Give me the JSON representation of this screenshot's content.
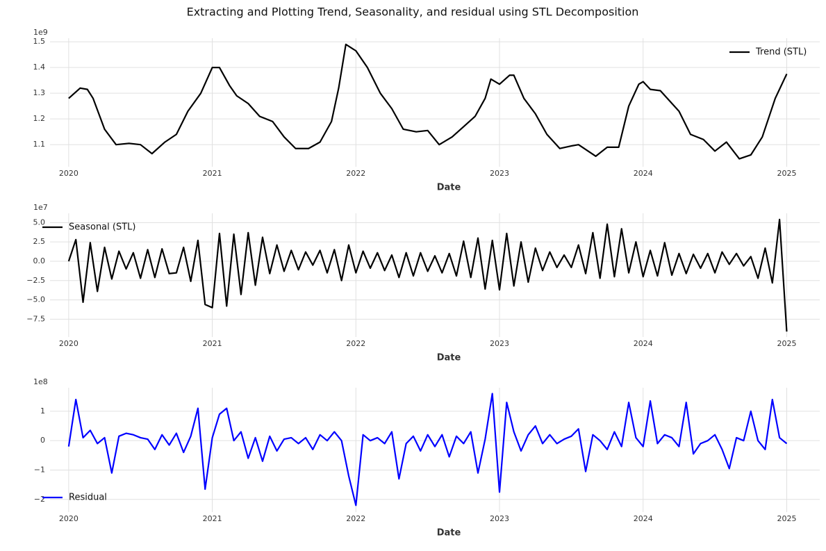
{
  "title": "Extracting and Plotting Trend, Seasonality, and residual using STL Decomposition",
  "chart_data": [
    {
      "type": "line",
      "xlabel": "Date",
      "y_offset_label": "1e9",
      "legend": "upper right",
      "grid": true,
      "xlim": [
        2019.87,
        2025.23
      ],
      "xticks": [
        2020,
        2021,
        2022,
        2023,
        2024,
        2025
      ],
      "ylim": [
        1.014,
        1.514
      ],
      "yticks": [
        1.1,
        1.2,
        1.3,
        1.4,
        1.5
      ],
      "x": [
        2020.0,
        2020.08,
        2020.13,
        2020.17,
        2020.25,
        2020.33,
        2020.42,
        2020.5,
        2020.58,
        2020.67,
        2020.75,
        2020.83,
        2020.92,
        2021.0,
        2021.05,
        2021.12,
        2021.17,
        2021.25,
        2021.33,
        2021.42,
        2021.5,
        2021.58,
        2021.67,
        2021.75,
        2021.83,
        2021.88,
        2021.93,
        2022.0,
        2022.08,
        2022.17,
        2022.25,
        2022.33,
        2022.42,
        2022.5,
        2022.58,
        2022.67,
        2022.75,
        2022.83,
        2022.9,
        2022.94,
        2023.0,
        2023.07,
        2023.1,
        2023.17,
        2023.25,
        2023.33,
        2023.42,
        2023.5,
        2023.55,
        2023.67,
        2023.75,
        2023.83,
        2023.9,
        2023.97,
        2024.0,
        2024.05,
        2024.12,
        2024.25,
        2024.33,
        2024.42,
        2024.5,
        2024.58,
        2024.67,
        2024.75,
        2024.83,
        2024.92,
        2025.0
      ],
      "series": [
        {
          "name": "Trend (STL)",
          "color": "#000000",
          "values": [
            1.28,
            1.32,
            1.315,
            1.28,
            1.16,
            1.1,
            1.105,
            1.1,
            1.065,
            1.11,
            1.14,
            1.23,
            1.3,
            1.4,
            1.4,
            1.33,
            1.29,
            1.26,
            1.21,
            1.19,
            1.13,
            1.085,
            1.085,
            1.11,
            1.19,
            1.32,
            1.49,
            1.465,
            1.4,
            1.3,
            1.24,
            1.16,
            1.15,
            1.155,
            1.1,
            1.13,
            1.17,
            1.21,
            1.28,
            1.355,
            1.335,
            1.37,
            1.37,
            1.28,
            1.22,
            1.14,
            1.085,
            1.095,
            1.1,
            1.055,
            1.09,
            1.09,
            1.25,
            1.335,
            1.345,
            1.315,
            1.31,
            1.23,
            1.14,
            1.12,
            1.075,
            1.11,
            1.045,
            1.06,
            1.13,
            1.28,
            1.375
          ]
        }
      ]
    },
    {
      "type": "line",
      "xlabel": "Date",
      "y_offset_label": "1e7",
      "legend": "upper left",
      "grid": true,
      "xlim": [
        2019.87,
        2025.23
      ],
      "xticks": [
        2020,
        2021,
        2022,
        2023,
        2024,
        2025
      ],
      "ylim": [
        -9.8,
        6.2
      ],
      "yticks": [
        {
          "value": 5,
          "label": "5.0"
        },
        {
          "value": 2.5,
          "label": "2.5"
        },
        {
          "value": 0,
          "label": "0.0"
        },
        {
          "value": -2.5,
          "label": "−2.5"
        },
        {
          "value": -5,
          "label": "−5.0"
        },
        {
          "value": -7.5,
          "label": "−7.5"
        }
      ],
      "x": [
        2020,
        2020.05,
        2020.1,
        2020.15,
        2020.2,
        2020.25,
        2020.3,
        2020.35,
        2020.4,
        2020.45,
        2020.5,
        2020.55,
        2020.6,
        2020.65,
        2020.7,
        2020.75,
        2020.8,
        2020.85,
        2020.9,
        2020.95,
        2021,
        2021.05,
        2021.1,
        2021.15,
        2021.2,
        2021.25,
        2021.3,
        2021.35,
        2021.4,
        2021.45,
        2021.5,
        2021.55,
        2021.6,
        2021.65,
        2021.7,
        2021.75,
        2021.8,
        2021.85,
        2021.9,
        2021.95,
        2022,
        2022.05,
        2022.1,
        2022.15,
        2022.2,
        2022.25,
        2022.3,
        2022.35,
        2022.4,
        2022.45,
        2022.5,
        2022.55,
        2022.6,
        2022.65,
        2022.7,
        2022.75,
        2022.8,
        2022.85,
        2022.9,
        2022.95,
        2023,
        2023.05,
        2023.1,
        2023.15,
        2023.2,
        2023.25,
        2023.3,
        2023.35,
        2023.4,
        2023.45,
        2023.5,
        2023.55,
        2023.6,
        2023.65,
        2023.7,
        2023.75,
        2023.8,
        2023.85,
        2023.9,
        2023.95,
        2024,
        2024.05,
        2024.1,
        2024.15,
        2024.2,
        2024.25,
        2024.3,
        2024.35,
        2024.4,
        2024.45,
        2024.5,
        2024.55,
        2024.6,
        2024.65,
        2024.7,
        2024.75,
        2024.8,
        2024.85,
        2024.9,
        2024.95,
        2025
      ],
      "series": [
        {
          "name": "Seasonal (STL)",
          "color": "#000000",
          "values": [
            0,
            2.8,
            -5.3,
            2.4,
            -3.9,
            1.8,
            -2.3,
            1.3,
            -1.0,
            1.1,
            -2.2,
            1.5,
            -2.1,
            1.6,
            -1.6,
            -1.5,
            1.8,
            -2.6,
            2.7,
            -5.6,
            -6.0,
            3.6,
            -5.8,
            3.5,
            -4.3,
            3.7,
            -3.1,
            3.1,
            -1.6,
            2.1,
            -1.3,
            1.4,
            -1.1,
            1.2,
            -0.5,
            1.4,
            -1.5,
            1.5,
            -2.5,
            2.1,
            -1.5,
            1.3,
            -0.9,
            1.1,
            -1.2,
            0.8,
            -2.1,
            1.1,
            -1.9,
            1.1,
            -1.3,
            0.7,
            -1.5,
            1.0,
            -1.9,
            2.6,
            -2.1,
            3.0,
            -3.6,
            2.7,
            -3.7,
            3.6,
            -3.2,
            2.5,
            -2.7,
            1.7,
            -1.2,
            1.2,
            -0.8,
            0.8,
            -0.8,
            2.1,
            -1.6,
            3.7,
            -2.2,
            4.8,
            -2.0,
            4.2,
            -1.5,
            2.5,
            -2.0,
            1.4,
            -1.9,
            2.4,
            -1.8,
            1.0,
            -1.6,
            0.9,
            -0.9,
            1.0,
            -1.5,
            1.2,
            -0.4,
            1.0,
            -0.6,
            0.6,
            -2.2,
            1.7,
            -2.8,
            5.4,
            -9.1
          ]
        }
      ]
    },
    {
      "type": "line",
      "xlabel": "Date",
      "y_offset_label": "1e8",
      "legend": "lower left",
      "grid": true,
      "xlim": [
        2019.87,
        2025.23
      ],
      "xticks": [
        2020,
        2021,
        2022,
        2023,
        2024,
        2025
      ],
      "ylim": [
        -2.43,
        1.8
      ],
      "yticks": [
        1,
        0,
        {
          "value": -1,
          "label": "−1"
        },
        {
          "value": -2,
          "label": "−2"
        }
      ],
      "x": [
        2020,
        2020.05,
        2020.1,
        2020.15,
        2020.2,
        2020.25,
        2020.3,
        2020.35,
        2020.4,
        2020.45,
        2020.5,
        2020.55,
        2020.6,
        2020.65,
        2020.7,
        2020.75,
        2020.8,
        2020.85,
        2020.9,
        2020.95,
        2021,
        2021.05,
        2021.1,
        2021.15,
        2021.2,
        2021.25,
        2021.3,
        2021.35,
        2021.4,
        2021.45,
        2021.5,
        2021.55,
        2021.6,
        2021.65,
        2021.7,
        2021.75,
        2021.8,
        2021.85,
        2021.9,
        2021.95,
        2022,
        2022.05,
        2022.1,
        2022.15,
        2022.2,
        2022.25,
        2022.3,
        2022.35,
        2022.4,
        2022.45,
        2022.5,
        2022.55,
        2022.6,
        2022.65,
        2022.7,
        2022.75,
        2022.8,
        2022.85,
        2022.9,
        2022.95,
        2023,
        2023.05,
        2023.1,
        2023.15,
        2023.2,
        2023.25,
        2023.3,
        2023.35,
        2023.4,
        2023.45,
        2023.5,
        2023.55,
        2023.6,
        2023.65,
        2023.7,
        2023.75,
        2023.8,
        2023.85,
        2023.9,
        2023.95,
        2024,
        2024.05,
        2024.1,
        2024.15,
        2024.2,
        2024.25,
        2024.3,
        2024.35,
        2024.4,
        2024.45,
        2024.5,
        2024.55,
        2024.6,
        2024.65,
        2024.7,
        2024.75,
        2024.8,
        2024.85,
        2024.9,
        2024.95,
        2025
      ],
      "series": [
        {
          "name": "Residual",
          "color": "#0000ff",
          "values": [
            -0.2,
            1.4,
            0.1,
            0.35,
            -0.1,
            0.1,
            -1.1,
            0.15,
            0.25,
            0.2,
            0.1,
            0.05,
            -0.3,
            0.2,
            -0.15,
            0.25,
            -0.4,
            0.15,
            1.1,
            -1.65,
            0.1,
            0.9,
            1.1,
            0.0,
            0.3,
            -0.6,
            0.1,
            -0.7,
            0.15,
            -0.35,
            0.05,
            0.1,
            -0.1,
            0.1,
            -0.3,
            0.2,
            0.0,
            0.3,
            0.0,
            -1.2,
            -2.2,
            0.2,
            0.0,
            0.1,
            -0.1,
            0.3,
            -1.3,
            -0.1,
            0.15,
            -0.35,
            0.2,
            -0.2,
            0.2,
            -0.55,
            0.15,
            -0.1,
            0.3,
            -1.1,
            0.05,
            1.6,
            -1.75,
            1.3,
            0.3,
            -0.35,
            0.2,
            0.5,
            -0.1,
            0.2,
            -0.1,
            0.05,
            0.15,
            0.4,
            -1.05,
            0.2,
            0.0,
            -0.3,
            0.3,
            -0.2,
            1.3,
            0.1,
            -0.2,
            1.35,
            -0.1,
            0.2,
            0.1,
            -0.2,
            1.3,
            -0.45,
            -0.1,
            0.0,
            0.2,
            -0.3,
            -0.95,
            0.1,
            0.0,
            1.0,
            0.0,
            -0.3,
            1.4,
            0.1,
            -0.1
          ]
        }
      ]
    }
  ]
}
